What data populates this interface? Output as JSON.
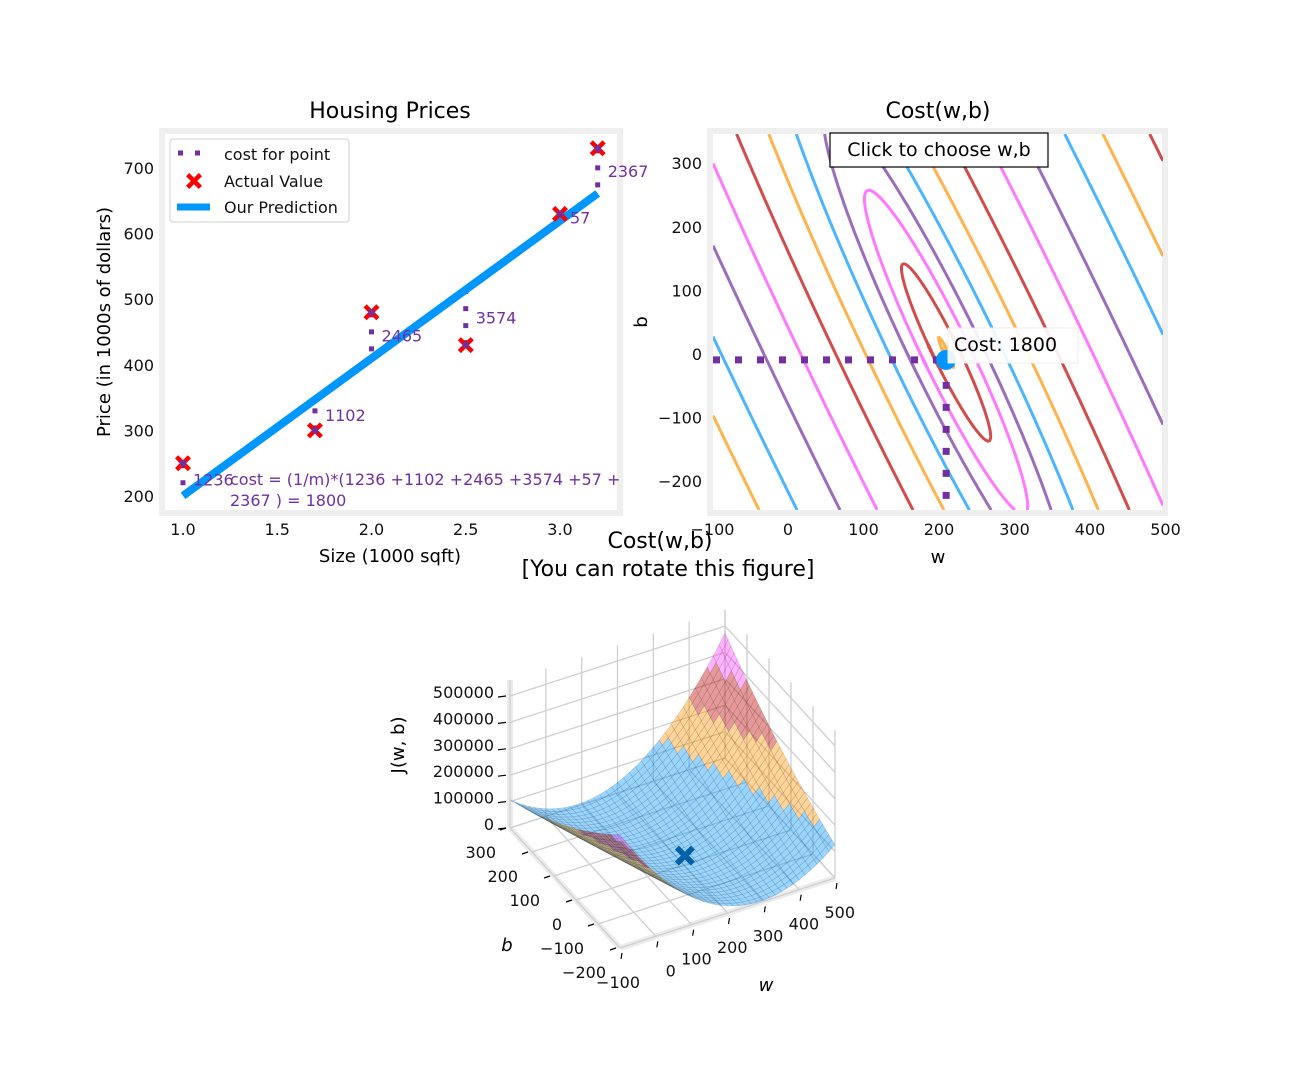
{
  "chart_data": [
    {
      "type": "line+scatter",
      "title": "Housing Prices",
      "xlabel": "Size (1000 sqft)",
      "ylabel": "Price (in 1000s of dollars)",
      "x": [
        1.0,
        1.7,
        2.0,
        2.5,
        3.0,
        3.2
      ],
      "y": [
        250,
        300,
        480,
        430,
        630,
        730
      ],
      "prediction": {
        "w": 209.5,
        "b": -9.2
      },
      "point_costs": [
        "1236",
        "1102",
        "2465",
        "3574",
        "57",
        "2367"
      ],
      "cost_text": [
        "cost = (1/m)*(1236 +1102 +2465 +3574 +57 +",
        "2367 ) = 1800"
      ],
      "xlim": [
        0.89,
        3.31
      ],
      "ylim": [
        179,
        753
      ],
      "xticks": [
        "1.0",
        "1.5",
        "2.0",
        "2.5",
        "3.0"
      ],
      "yticks": [
        "200",
        "300",
        "400",
        "500",
        "600",
        "700"
      ],
      "legend": [
        "cost for point",
        "Actual Value",
        "Our Prediction"
      ],
      "legend_position": "upper-left",
      "grid": false,
      "colors": {
        "cost": "#7030A0",
        "actual": "#FF0000",
        "prediction": "#0096FF"
      }
    },
    {
      "type": "contour",
      "title": "Cost(w,b)",
      "xlabel": "w",
      "ylabel": "b",
      "xlim": [
        -100,
        500
      ],
      "ylim": [
        -250,
        350
      ],
      "xticks": [
        "−100",
        "0",
        "100",
        "200",
        "300",
        "400",
        "500"
      ],
      "yticks": [
        "300",
        "200",
        "100",
        "0",
        "−100",
        "−200"
      ],
      "levels": [
        1764,
        2740,
        5100,
        9300,
        18000,
        34000,
        62000,
        106000,
        165000,
        250000,
        340000,
        470000
      ],
      "level_colors": [
        "#FF9300",
        "#C00000",
        "#FF40FF",
        "#7030A0",
        "#0096FF"
      ],
      "selected": {
        "w": 209.5,
        "b": -9.2
      },
      "button_label": "Click to choose w,b",
      "annotation": "Cost: 1800",
      "marker_color": "#0096FF",
      "guide_color": "#7030A0"
    },
    {
      "type": "surface",
      "title": [
        "Cost(w,b)",
        "[You can rotate this figure]"
      ],
      "xlabel": "w",
      "ylabel": "b",
      "zlabel": "J(w, b)",
      "xlim": [
        -100,
        500
      ],
      "ylim": [
        -200,
        300
      ],
      "xticks": [
        "−100",
        "0",
        "100",
        "200",
        "300",
        "400",
        "500"
      ],
      "yticks": [
        "−200",
        "−100",
        "0",
        "100",
        "200",
        "300"
      ],
      "zticks": [
        "0",
        "100000",
        "200000",
        "300000",
        "400000",
        "500000"
      ],
      "band_colors": [
        "#0096FF",
        "#FF9300",
        "#C00000",
        "#FF40FF",
        "#7030A0"
      ],
      "marker": {
        "w": 209.5,
        "b": -9.2,
        "cost": 1800,
        "color": "#0060A8"
      }
    }
  ]
}
